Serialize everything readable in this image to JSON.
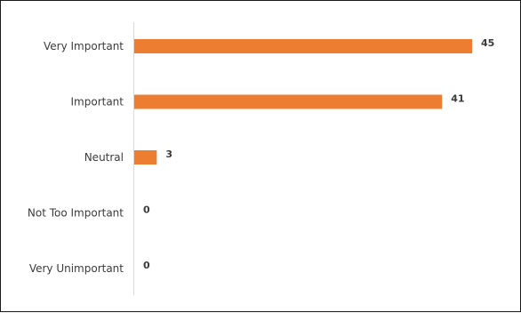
{
  "chart_data": {
    "type": "bar",
    "orientation": "horizontal",
    "categories": [
      "Very Important",
      "Important",
      "Neutral",
      "Not Too Important",
      "Very Unimportant"
    ],
    "values": [
      45,
      41,
      3,
      0,
      0
    ],
    "title": "",
    "xlabel": "",
    "ylabel": "",
    "xlim": [
      0,
      45
    ],
    "grid": false,
    "legend": "none",
    "bar_color": "#ED7D31",
    "axis_color": "#D9D9D9",
    "data_labels": true
  }
}
